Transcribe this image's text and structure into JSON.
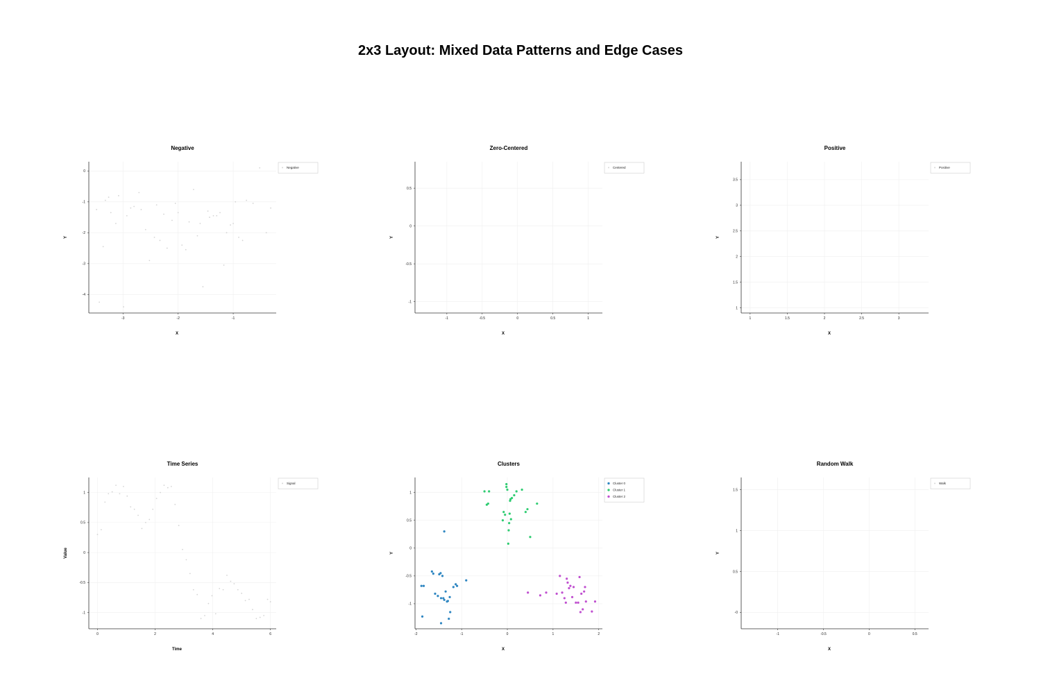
{
  "suptitle": "2x3 Layout: Mixed Data Patterns and Edge Cases",
  "chart_data": [
    {
      "id": "negative",
      "type": "scatter",
      "title": "Negative",
      "xlabel": "X",
      "ylabel": "Y",
      "xlim": [
        -3.62,
        -0.22
      ],
      "ylim": [
        -4.6,
        0.3
      ],
      "xticks": [
        -3,
        -2,
        -1
      ],
      "yticks": [
        0,
        -1,
        -2,
        -3,
        -4
      ],
      "xtick_labels": [
        "-3",
        "-2",
        "-1"
      ],
      "ytick_labels": [
        "0",
        "-1",
        "-2",
        "-3",
        "-4"
      ],
      "grid": true,
      "legend": "top-right",
      "series": [
        {
          "name": "Negative",
          "color": "#d4d4d4",
          "marker_size": 0.9,
          "x": [
            -3.48,
            -3.43,
            -3.36,
            -3.32,
            -3.26,
            -3.22,
            -3.13,
            -3.08,
            -2.99,
            -2.93,
            -2.86,
            -2.8,
            -2.71,
            -2.67,
            -2.59,
            -2.52,
            -2.43,
            -2.39,
            -2.33,
            -2.26,
            -2.2,
            -2.11,
            -2.05,
            -2.0,
            -1.93,
            -1.86,
            -1.8,
            -1.72,
            -1.65,
            -1.6,
            -1.55,
            -1.46,
            -1.43,
            -1.36,
            -1.3,
            -1.24,
            -1.17,
            -1.12,
            -1.05,
            -1.0,
            -0.96,
            -0.9,
            -0.83,
            -0.76,
            -0.64,
            -0.52,
            -0.4,
            -0.32
          ],
          "y": [
            -1.25,
            -4.25,
            -2.45,
            -0.95,
            -0.85,
            -1.35,
            -1.7,
            -0.8,
            -4.4,
            -1.45,
            -1.2,
            -1.15,
            -0.7,
            -1.25,
            -1.9,
            -2.9,
            -2.15,
            -1.1,
            -2.25,
            -1.4,
            -2.5,
            -1.6,
            -1.05,
            -1.35,
            -2.4,
            -2.55,
            -1.65,
            -0.6,
            -2.1,
            -1.7,
            -3.75,
            -1.3,
            -1.5,
            -1.45,
            -1.45,
            -1.35,
            -3.05,
            -2.0,
            -1.75,
            -1.7,
            -1.0,
            -2.15,
            -2.25,
            -0.95,
            -1.05,
            0.1,
            -2.0,
            -1.2
          ]
        }
      ]
    },
    {
      "id": "zero-centered",
      "type": "scatter",
      "title": "Zero-Centered",
      "xlabel": "X",
      "ylabel": "Y",
      "xlim": [
        -1.45,
        1.2
      ],
      "ylim": [
        -1.15,
        0.85
      ],
      "xticks": [
        -1,
        -0.5,
        0,
        0.5,
        1
      ],
      "yticks": [
        0.5,
        0,
        -0.5,
        -1
      ],
      "xtick_labels": [
        "-1",
        "-0.5",
        "0",
        "0.5",
        "1"
      ],
      "ytick_labels": [
        "0.5",
        "0",
        "-0.5",
        "-1"
      ],
      "grid": true,
      "legend": "top-right",
      "series": [
        {
          "name": "Centered",
          "color": "#d4d4d4",
          "marker_size": 0.9,
          "x": [],
          "y": []
        }
      ]
    },
    {
      "id": "positive",
      "type": "scatter",
      "title": "Positive",
      "xlabel": "X",
      "ylabel": "Y",
      "xlim": [
        0.88,
        3.4
      ],
      "ylim": [
        0.9,
        3.85
      ],
      "xticks": [
        1,
        1.5,
        2,
        2.5,
        3
      ],
      "yticks": [
        3.5,
        3,
        2.5,
        2,
        1.5,
        1
      ],
      "xtick_labels": [
        "1",
        "1.5",
        "2",
        "2.5",
        "3"
      ],
      "ytick_labels": [
        "3.5",
        "3",
        "2.5",
        "2",
        "1.5",
        "1"
      ],
      "grid": true,
      "legend": "top-right",
      "series": [
        {
          "name": "Positive",
          "color": "#d4d4d4",
          "marker_size": 0.9,
          "x": [],
          "y": []
        }
      ]
    },
    {
      "id": "time-series",
      "type": "line",
      "title": "Time Series",
      "xlabel": "Time",
      "ylabel": "Value",
      "xlim": [
        -0.3,
        6.2
      ],
      "ylim": [
        -1.27,
        1.25
      ],
      "xticks": [
        0,
        2,
        4,
        6
      ],
      "yticks": [
        1,
        0.5,
        0,
        -0.5,
        -1
      ],
      "xtick_labels": [
        "0",
        "2",
        "4",
        "6"
      ],
      "ytick_labels": [
        "1",
        "0.5",
        "0",
        "-0.5",
        "-1"
      ],
      "grid": true,
      "legend": "top-right",
      "series": [
        {
          "name": "Signal",
          "color": "#d4d4d4",
          "marker_size": 0.9,
          "x": [
            0,
            0.13,
            0.26,
            0.38,
            0.51,
            0.64,
            0.77,
            0.9,
            1.03,
            1.15,
            1.28,
            1.41,
            1.54,
            1.67,
            1.8,
            1.92,
            2.05,
            2.18,
            2.31,
            2.44,
            2.56,
            2.69,
            2.82,
            2.95,
            3.08,
            3.21,
            3.33,
            3.46,
            3.59,
            3.72,
            3.85,
            3.97,
            4.1,
            4.23,
            4.36,
            4.49,
            4.62,
            4.74,
            4.87,
            5.0,
            5.13,
            5.26,
            5.38,
            5.51,
            5.64,
            5.77,
            5.9,
            6.0
          ],
          "y": [
            0.3,
            0.38,
            0.84,
            0.98,
            1.01,
            1.12,
            0.98,
            1.1,
            0.94,
            0.76,
            0.72,
            0.62,
            0.4,
            0.5,
            0.55,
            0.72,
            0.9,
            1.0,
            1.12,
            1.08,
            1.1,
            0.8,
            0.45,
            0.05,
            -0.12,
            -0.35,
            -0.62,
            -0.7,
            -1.1,
            -1.05,
            -0.85,
            -0.72,
            -1.02,
            -0.6,
            -0.62,
            -0.38,
            -0.48,
            -0.52,
            -0.62,
            -0.68,
            -0.8,
            -0.78,
            -0.95,
            -1.1,
            -1.08,
            -1.05,
            -0.78,
            -0.82
          ]
        }
      ]
    },
    {
      "id": "clusters",
      "type": "scatter",
      "title": "Clusters",
      "xlabel": "X",
      "ylabel": "Y",
      "xlim": [
        -2.02,
        2.08
      ],
      "ylim": [
        -1.45,
        1.27
      ],
      "xticks": [
        -2,
        -1,
        0,
        1,
        2
      ],
      "yticks": [
        1,
        0.5,
        0,
        -0.5,
        -1
      ],
      "xtick_labels": [
        "-2",
        "-1",
        "0",
        "1",
        "2"
      ],
      "ytick_labels": [
        "1",
        "0.5",
        "0",
        "-0.5",
        "-1"
      ],
      "grid": true,
      "legend": "top-right",
      "series": [
        {
          "name": "Cluster 0",
          "color": "#2e86c1",
          "marker_size": 1.6,
          "x": [
            -1.88,
            -1.83,
            -1.65,
            -1.62,
            -1.58,
            -1.52,
            -1.49,
            -1.46,
            -1.45,
            -1.42,
            -1.4,
            -1.38,
            -1.35,
            -1.32,
            -1.28,
            -1.26,
            -1.25,
            -1.18,
            -1.13,
            -1.1,
            -0.9,
            -1.86,
            -1.45,
            -1.3,
            -1.38
          ],
          "y": [
            -0.68,
            -0.68,
            -0.42,
            -0.46,
            -0.82,
            -0.86,
            -0.47,
            -0.45,
            -0.9,
            -0.5,
            -0.9,
            0.3,
            -0.78,
            -0.96,
            -1.27,
            -0.88,
            -1.15,
            -0.7,
            -0.65,
            -0.68,
            -0.58,
            -1.23,
            -1.35,
            -0.95,
            -0.93
          ]
        },
        {
          "name": "Cluster 1",
          "color": "#2ecc71",
          "marker_size": 1.6,
          "x": [
            -0.5,
            -0.45,
            -0.42,
            -0.4,
            -0.1,
            -0.08,
            -0.05,
            -0.02,
            0,
            0.02,
            0.03,
            0.04,
            0.05,
            0.06,
            0.08,
            0.1,
            0.15,
            0.2,
            0.32,
            0.4,
            0.44,
            0.5,
            0.65,
            -0.02,
            0.07
          ],
          "y": [
            1.02,
            0.78,
            0.8,
            1.02,
            0.5,
            0.65,
            0.6,
            1.15,
            1.05,
            0.08,
            0.32,
            0.45,
            0.62,
            0.85,
            0.52,
            0.9,
            0.95,
            1.02,
            1.05,
            0.65,
            0.7,
            0.2,
            0.8,
            1.1,
            0.88
          ]
        },
        {
          "name": "Cluster 2",
          "color": "#c050d0",
          "marker_size": 1.6,
          "x": [
            0.45,
            0.72,
            0.85,
            1.08,
            1.15,
            1.2,
            1.25,
            1.28,
            1.3,
            1.32,
            1.35,
            1.38,
            1.42,
            1.45,
            1.5,
            1.55,
            1.58,
            1.6,
            1.62,
            1.65,
            1.68,
            1.7,
            1.72,
            1.85,
            1.92
          ],
          "y": [
            -0.8,
            -0.85,
            -0.8,
            -0.82,
            -0.5,
            -0.8,
            -0.9,
            -0.98,
            -0.55,
            -0.62,
            -0.72,
            -0.68,
            -0.88,
            -0.7,
            -0.98,
            -0.98,
            -0.52,
            -1.15,
            -0.82,
            -1.1,
            -0.78,
            -0.7,
            -0.96,
            -1.14,
            -0.96
          ]
        }
      ]
    },
    {
      "id": "random-walk",
      "type": "line",
      "title": "Random Walk",
      "xlabel": "X",
      "ylabel": "Y",
      "xlim": [
        -1.4,
        0.65
      ],
      "ylim": [
        -0.2,
        1.65
      ],
      "xticks": [
        -1,
        -0.5,
        0,
        0.5
      ],
      "yticks": [
        1.5,
        1,
        0.5,
        0
      ],
      "xtick_labels": [
        "-1",
        "-0.5",
        "0",
        "0.5"
      ],
      "ytick_labels": [
        "1.5",
        "1",
        "0.5",
        "-0"
      ],
      "grid": true,
      "legend": "top-right",
      "series": [
        {
          "name": "Walk",
          "color": "#d4d4d4",
          "marker_size": 0.9,
          "x": [],
          "y": []
        }
      ]
    }
  ]
}
